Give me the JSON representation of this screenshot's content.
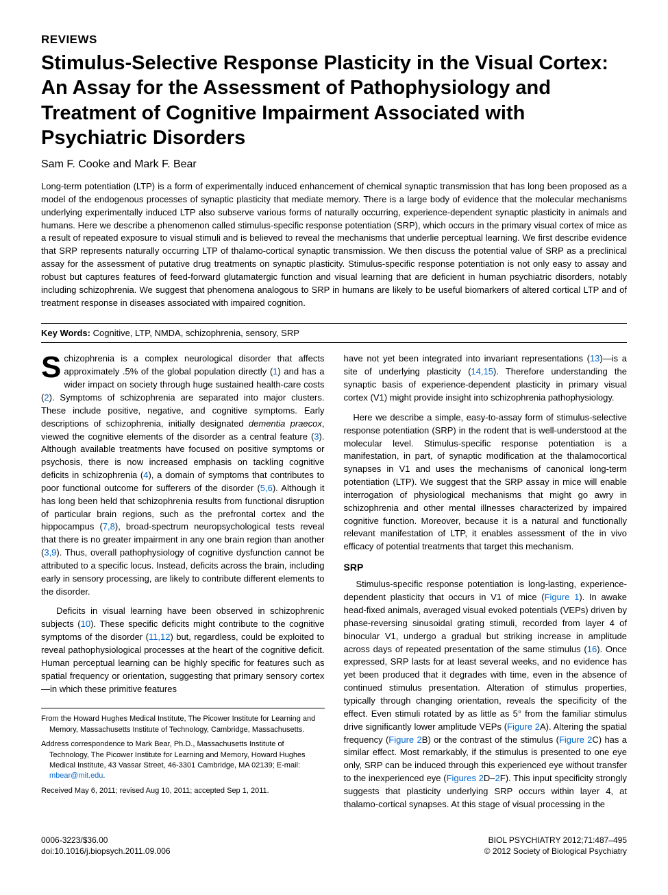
{
  "section_label": "REVIEWS",
  "title": "Stimulus-Selective Response Plasticity in the Visual Cortex: An Assay for the Assessment of Pathophysiology and Treatment of Cognitive Impairment Associated with Psychiatric Disorders",
  "authors": "Sam F. Cooke and Mark F. Bear",
  "abstract": "Long-term potentiation (LTP) is a form of experimentally induced enhancement of chemical synaptic transmission that has long been proposed as a model of the endogenous processes of synaptic plasticity that mediate memory. There is a large body of evidence that the molecular mechanisms underlying experimentally induced LTP also subserve various forms of naturally occurring, experience-dependent synaptic plasticity in animals and humans. Here we describe a phenomenon called stimulus-specific response potentiation (SRP), which occurs in the primary visual cortex of mice as a result of repeated exposure to visual stimuli and is believed to reveal the mechanisms that underlie perceptual learning. We first describe evidence that SRP represents naturally occurring LTP of thalamo-cortical synaptic transmission. We then discuss the potential value of SRP as a preclinical assay for the assessment of putative drug treatments on synaptic plasticity. Stimulus-specific response potentiation is not only easy to assay and robust but captures features of feed-forward glutamatergic function and visual learning that are deficient in human psychiatric disorders, notably including schizophrenia. We suggest that phenomena analogous to SRP in humans are likely to be useful biomarkers of altered cortical LTP and of treatment response in diseases associated with impaired cognition.",
  "keywords_label": "Key Words:",
  "keywords": " Cognitive, LTP, NMDA, schizophrenia, sensory, SRP",
  "col1": {
    "p1_a": "Schizophrenia is a complex neurological disorder that affects approximately .5% of the global population directly (",
    "p1_b": ") and has a wider impact on society through huge sustained health-care costs (",
    "p1_c": "). Symptoms of schizophrenia are separated into major clusters. These include positive, negative, and cognitive symptoms. Early descriptions of schizophrenia, initially designated ",
    "p1_d": ", viewed the cognitive elements of the disorder as a central feature (",
    "p1_e": "). Although available treatments have focused on positive symptoms or psychosis, there is now increased emphasis on tackling cognitive deficits in schizophrenia (",
    "p1_f": "), a domain of symptoms that contributes to poor functional outcome for sufferers of the disorder (",
    "p1_g": "). Although it has long been held that schizophrenia results from functional disruption of particular brain regions, such as the prefrontal cortex and the hippocampus (",
    "p1_h": "), broad-spectrum neuropsychological tests reveal that there is no greater impairment in any one brain region than another (",
    "p1_i": "). Thus, overall pathophysiology of cognitive dysfunction cannot be attributed to a specific locus. Instead, deficits across the brain, including early in sensory processing, are likely to contribute different elements to the disorder.",
    "dementia": "dementia praecox",
    "p2_a": "Deficits in visual learning have been observed in schizophrenic subjects (",
    "p2_b": "). These specific deficits might contribute to the cognitive symptoms of the disorder (",
    "p2_c": ") but, regardless, could be exploited to reveal pathophysiological processes at the heart of the cognitive deficit. Human perceptual learning can be highly specific for features such as spatial frequency or orientation, suggesting that primary sensory cortex—in which these primitive features",
    "c1": "1",
    "c2": "2",
    "c3": "3",
    "c4": "4",
    "c56": "5,6",
    "c78": "7,8",
    "c39": "3,9",
    "c10": "10",
    "c1112": "11,12"
  },
  "col2": {
    "p1_a": "have not yet been integrated into invariant representations (",
    "p1_b": ")—is a site of underlying plasticity (",
    "p1_c": "). Therefore understanding the synaptic basis of experience-dependent plasticity in primary visual cortex (V1) might provide insight into schizophrenia pathophysiology.",
    "c13": "13",
    "c1415": "14,15",
    "p2": "Here we describe a simple, easy-to-assay form of stimulus-selective response potentiation (SRP) in the rodent that is well-understood at the molecular level. Stimulus-specific response potentiation is a manifestation, in part, of synaptic modification at the thalamocortical synapses in V1 and uses the mechanisms of canonical long-term potentiation (LTP). We suggest that the SRP assay in mice will enable interrogation of physiological mechanisms that might go awry in schizophrenia and other mental illnesses characterized by impaired cognitive function. Moreover, because it is a natural and functionally relevant manifestation of LTP, it enables assessment of the in vivo efficacy of potential treatments that target this mechanism.",
    "subhead": "SRP",
    "p3_a": "Stimulus-specific response potentiation is long-lasting, experience-dependent plasticity that occurs in V1 of mice (",
    "p3_b": "). In awake head-fixed animals, averaged visual evoked potentials (VEPs) driven by phase-reversing sinusoidal grating stimuli, recorded from layer 4 of binocular V1, undergo a gradual but striking increase in amplitude across days of repeated presentation of the same stimulus (",
    "p3_c": "). Once expressed, SRP lasts for at least several weeks, and no evidence has yet been produced that it degrades with time, even in the absence of continued stimulus presentation. Alteration of stimulus properties, typically through changing orientation, reveals the specificity of the effect. Even stimuli rotated by as little as 5° from the familiar stimulus drive significantly lower amplitude VEPs (",
    "p3_d": "A). Altering the spatial frequency (",
    "p3_e": "B) or the contrast of the stimulus (",
    "p3_f": "C) has a similar effect. Most remarkably, if the stimulus is presented to one eye only, SRP can be induced through this experienced eye without transfer to the inexperienced eye (",
    "p3_g": "F). This input specificity strongly suggests that plasticity underlying SRP occurs within layer 4, at thalamo-cortical synapses. At this stage of visual processing in the",
    "fig1": "Figure 1",
    "c16": "16",
    "fig2a": "Figure 2",
    "fig2b": "Figure 2",
    "fig2c": "Figure 2",
    "fig2d": "Figures 2",
    "fig2f": "2",
    "dash": "D–"
  },
  "affil": {
    "from": "From the Howard Hughes Medical Institute, The Picower Institute for Learning and Memory, Massachusetts Institute of Technology, Cambridge, Massachusetts.",
    "corr_a": "Address correspondence to Mark Bear, Ph.D., Massachusetts Institute of Technology, The Picower Institute for Learning and Memory, Howard Hughes Medical Institute, 43 Vassar Street, 46-3301 Cambridge, MA 02139; E-mail: ",
    "email": "mbear@mit.edu",
    "corr_b": ".",
    "dates": "Received May 6, 2011; revised Aug 10, 2011; accepted Sep 1, 2011."
  },
  "footer": {
    "left1": "0006-3223/$36.00",
    "left2": "doi:10.1016/j.biopsych.2011.09.006",
    "right1": "BIOL PSYCHIATRY 2012;71:487–495",
    "right2": "© 2012 Society of Biological Psychiatry"
  },
  "colors": {
    "link": "#0066cc",
    "text": "#000000",
    "bg": "#ffffff"
  }
}
